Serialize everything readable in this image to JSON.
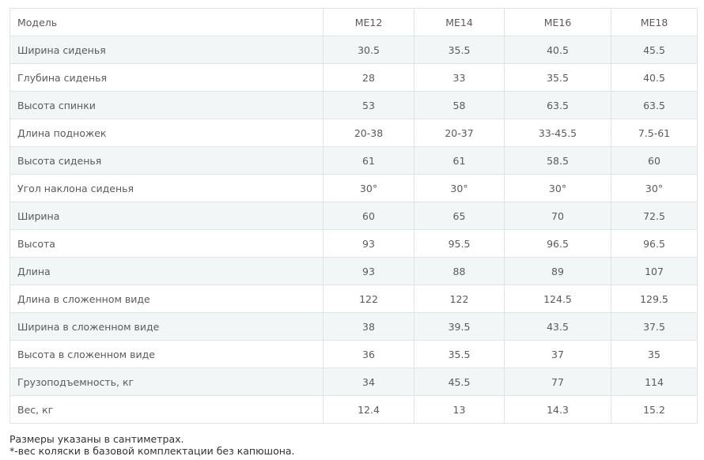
{
  "table": {
    "header": [
      "Модель",
      "ME12",
      "ME14",
      "ME16",
      "ME18"
    ],
    "rows": [
      [
        "Ширина сиденья",
        "30.5",
        "35.5",
        "40.5",
        "45.5"
      ],
      [
        "Глубина сиденья",
        "28",
        "33",
        "35.5",
        "40.5"
      ],
      [
        "Высота спинки",
        "53",
        "58",
        "63.5",
        "63.5"
      ],
      [
        "Длина подножек",
        "20-38",
        "20-37",
        "33-45.5",
        "7.5-61"
      ],
      [
        "Высота сиденья",
        "61",
        "61",
        "58.5",
        "60"
      ],
      [
        "Угол наклона сиденья",
        "30°",
        "30°",
        "30°",
        "30°"
      ],
      [
        "Ширина",
        "60",
        "65",
        "70",
        "72.5"
      ],
      [
        "Высота",
        "93",
        "95.5",
        "96.5",
        "96.5"
      ],
      [
        "Длина",
        "93",
        "88",
        "89",
        "107"
      ],
      [
        "Длина в сложенном виде",
        "122",
        "122",
        "124.5",
        "129.5"
      ],
      [
        "Ширина в сложенном виде",
        "38",
        "39.5",
        "43.5",
        "37.5"
      ],
      [
        "Высота в сложенном виде",
        "36",
        "35.5",
        "37",
        "35"
      ],
      [
        "Грузоподъемность, кг",
        "34",
        "45.5",
        "77",
        "114"
      ],
      [
        "Вес, кг",
        "12.4",
        "13",
        "14.3",
        "15.2"
      ]
    ]
  },
  "notes": [
    "Размеры указаны в сантиметрах.",
    "*-вес коляски в базовой комплектации без капюшона."
  ]
}
